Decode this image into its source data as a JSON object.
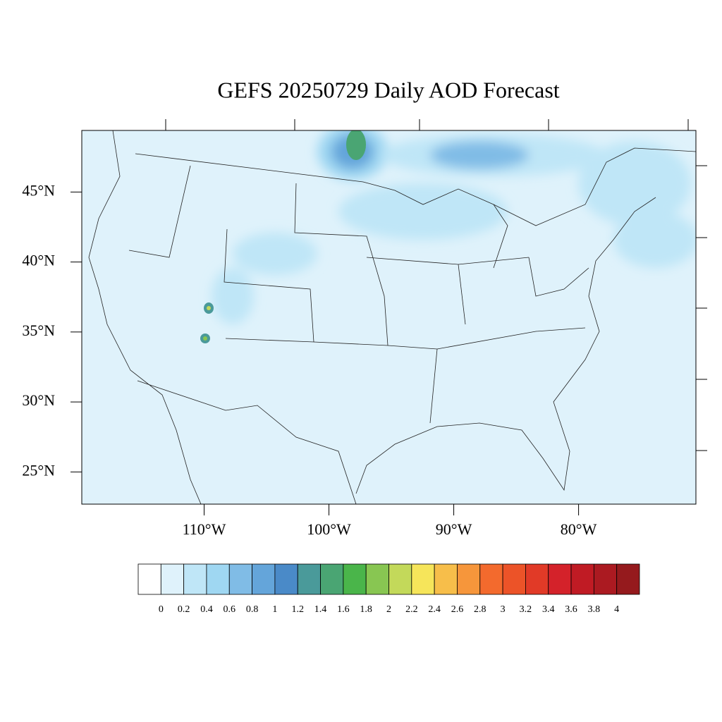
{
  "chart_data": {
    "type": "map",
    "title": "GEFS 20250729 Daily AOD Forecast",
    "xlim": [
      -119.8,
      -70.6
    ],
    "ylim": [
      22.7,
      49.4
    ],
    "xticks": [
      {
        "value": -110,
        "label": "110°W"
      },
      {
        "value": -100,
        "label": "100°W"
      },
      {
        "value": -90,
        "label": "90°W"
      },
      {
        "value": -80,
        "label": "80°W"
      }
    ],
    "yticks": [
      {
        "value": 25,
        "label": "25°N"
      },
      {
        "value": 30,
        "label": "30°N"
      },
      {
        "value": 35,
        "label": "35°N"
      },
      {
        "value": 40,
        "label": "40°N"
      },
      {
        "value": 45,
        "label": "45°N"
      }
    ],
    "colorbar": {
      "levels": [
        0,
        0.2,
        0.4,
        0.6,
        0.8,
        1,
        1.2,
        1.4,
        1.6,
        1.8,
        2,
        2.2,
        2.4,
        2.6,
        2.8,
        3,
        3.2,
        3.4,
        3.6,
        3.8,
        4
      ],
      "colors": [
        "#ffffff",
        "#dff2fb",
        "#bfe6f7",
        "#9fd7f2",
        "#80bce6",
        "#64a5da",
        "#4a8ac8",
        "#4a9a9a",
        "#4aa573",
        "#4ab54a",
        "#88c652",
        "#c3d95a",
        "#f6e55a",
        "#f7be4a",
        "#f6963b",
        "#f36a2d",
        "#ec5328",
        "#e13a27",
        "#d4222a",
        "#c01b24",
        "#ab1a21",
        "#951a1d"
      ]
    }
  }
}
